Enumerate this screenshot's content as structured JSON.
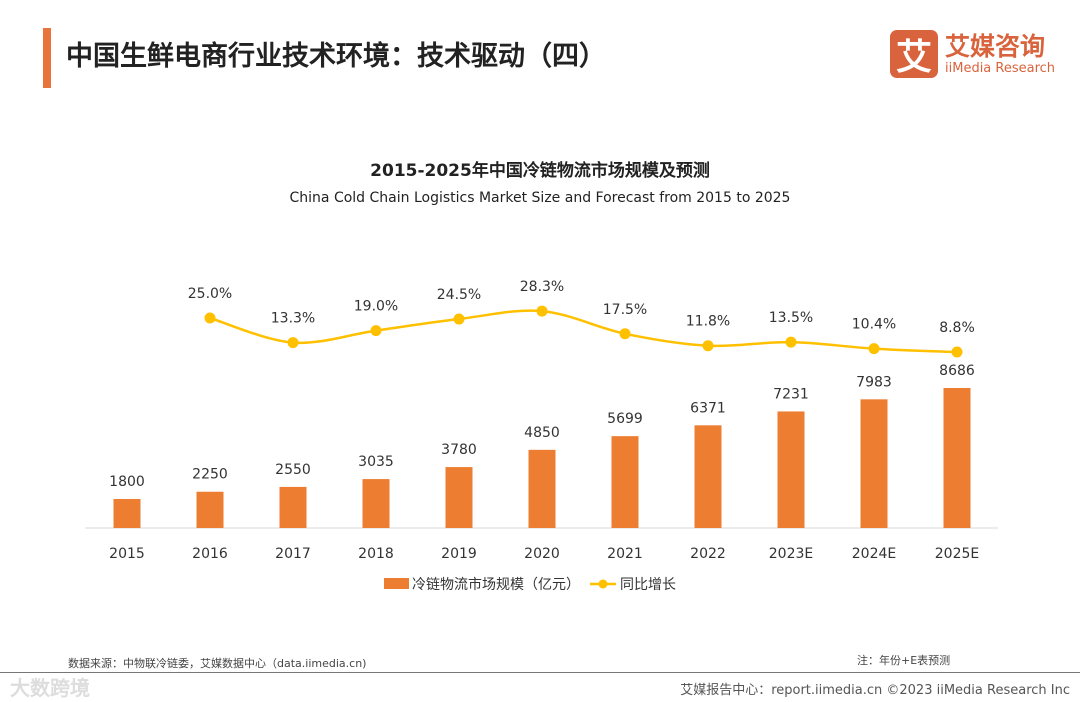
{
  "header": {
    "title": "中国生鲜电商行业技术环境：技术驱动（四）",
    "logo_mark": "艾",
    "logo_cn": "艾媒咨询",
    "logo_en": "iiMedia Research"
  },
  "chart_data": {
    "type": "bar+line",
    "title": "2015-2025年中国冷链物流市场规模及预测",
    "subtitle": "China Cold Chain Logistics Market Size and Forecast from 2015 to 2025",
    "categories": [
      "2015",
      "2016",
      "2017",
      "2018",
      "2019",
      "2020",
      "2021",
      "2022",
      "2023E",
      "2024E",
      "2025E"
    ],
    "series": [
      {
        "name": "冷链物流市场规模（亿元）",
        "type": "bar",
        "color": "#ed7d31",
        "values": [
          1800,
          2250,
          2550,
          3035,
          3780,
          4850,
          5699,
          6371,
          7231,
          7983,
          8686
        ]
      },
      {
        "name": "同比增长",
        "type": "line",
        "color": "#ffc000",
        "values": [
          null,
          25.0,
          13.3,
          19.0,
          24.5,
          28.3,
          17.5,
          11.8,
          13.5,
          10.4,
          8.8
        ],
        "labels": [
          "",
          "25.0%",
          "13.3%",
          "19.0%",
          "24.5%",
          "28.3%",
          "17.5%",
          "11.8%",
          "13.5%",
          "10.4%",
          "8.8%"
        ]
      }
    ],
    "legend": "bottom"
  },
  "footer": {
    "source": "数据来源：中物联冷链委，艾媒数据中心（data.iimedia.cn)",
    "note": "注：年份+E表预测",
    "copyright": "艾媒报告中心：report.iimedia.cn   ©2023  iiMedia Research  Inc",
    "watermark": "大数跨境"
  }
}
